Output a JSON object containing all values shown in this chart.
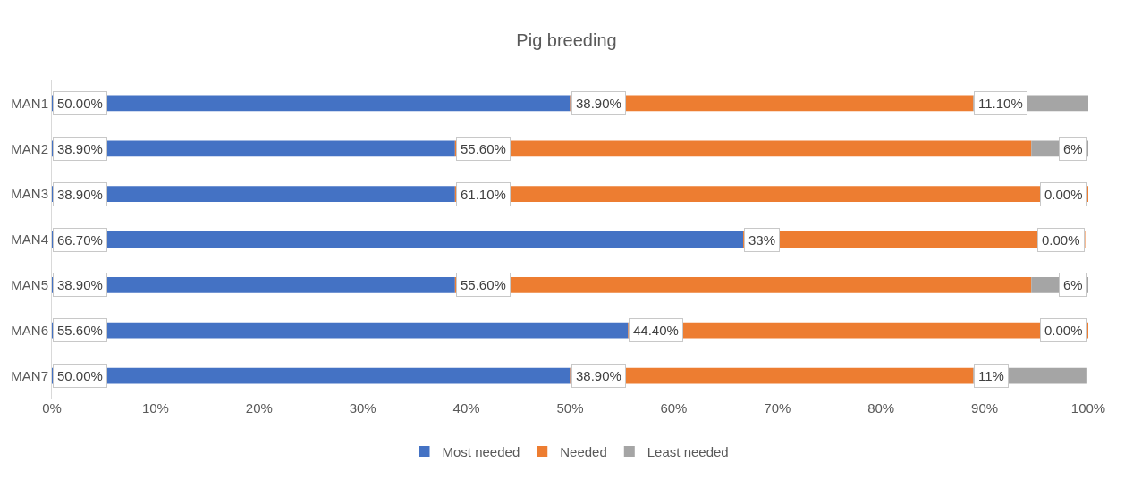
{
  "chart_data": {
    "type": "bar",
    "title": "Pig breeding",
    "orientation": "horizontal",
    "stacked": true,
    "categories": [
      "MAN1",
      "MAN2",
      "MAN3",
      "MAN4",
      "MAN5",
      "MAN6",
      "MAN7"
    ],
    "series": [
      {
        "name": "Most needed",
        "color": "#4472c4",
        "values": [
          50,
          38.9,
          38.9,
          66.7,
          38.9,
          55.6,
          50
        ],
        "value_labels": [
          "50.00%",
          "38.90%",
          "38.90%",
          "66.70%",
          "38.90%",
          "55.60%",
          "50.00%"
        ]
      },
      {
        "name": "Needed",
        "color": "#ed7d31",
        "values": [
          38.9,
          55.6,
          61.1,
          33,
          55.6,
          44.4,
          38.9
        ],
        "value_labels": [
          "38.90%",
          "55.60%",
          "61.10%",
          "33%",
          "55.60%",
          "44.40%",
          "38.90%"
        ]
      },
      {
        "name": "Least needed",
        "color": "#a5a5a5",
        "values": [
          11.1,
          5.5,
          0,
          0,
          5.5,
          0,
          11
        ],
        "value_labels": [
          "11.10%",
          "6%",
          "0.00%",
          "0.00%",
          "6%",
          "0.00%",
          "11%"
        ]
      }
    ],
    "xlim": [
      0,
      100
    ],
    "xticks": [
      {
        "value": 0,
        "label": "0%"
      },
      {
        "value": 10,
        "label": "10%"
      },
      {
        "value": 20,
        "label": "20%"
      },
      {
        "value": 30,
        "label": "30%"
      },
      {
        "value": 40,
        "label": "40%"
      },
      {
        "value": 50,
        "label": "50%"
      },
      {
        "value": 60,
        "label": "60%"
      },
      {
        "value": 70,
        "label": "70%"
      },
      {
        "value": 80,
        "label": "80%"
      },
      {
        "value": 90,
        "label": "90%"
      },
      {
        "value": 100,
        "label": "100%"
      }
    ],
    "legend": "bottom",
    "grid": false
  }
}
